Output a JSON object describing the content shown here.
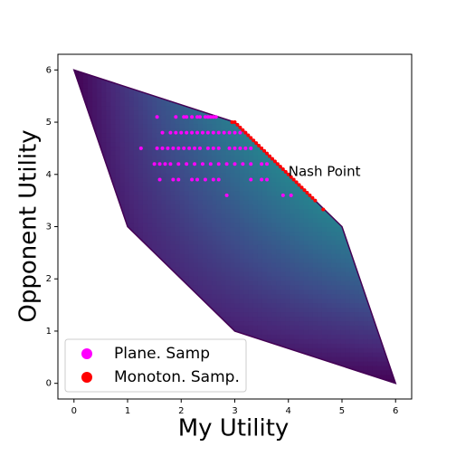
{
  "chart_data": {
    "type": "scatter",
    "xlabel": "My Utility",
    "ylabel": "Opponent Utility",
    "xlim": [
      -0.3,
      6.3
    ],
    "ylim": [
      -0.3,
      6.3
    ],
    "xticks": [
      0,
      1,
      2,
      3,
      4,
      5,
      6
    ],
    "yticks": [
      0,
      1,
      2,
      3,
      4,
      5,
      6
    ],
    "region": {
      "x": [
        0,
        3,
        5,
        6,
        3,
        1
      ],
      "y": [
        6,
        5,
        3,
        0,
        1,
        3
      ]
    },
    "annotation": {
      "text": "Nash Point",
      "x": 4.0,
      "y": 4.05
    },
    "legend": "lower left",
    "series": [
      {
        "name": "Plane. Samp",
        "color": "#ff00ff",
        "x": [
          1.55,
          1.9,
          2.05,
          2.1,
          2.2,
          2.3,
          2.35,
          2.45,
          2.5,
          2.55,
          2.6,
          2.65,
          1.65,
          1.8,
          1.9,
          2.0,
          2.1,
          2.2,
          2.3,
          2.4,
          2.5,
          2.6,
          2.7,
          2.8,
          2.9,
          3.0,
          3.1,
          3.2,
          1.25,
          1.55,
          1.65,
          1.75,
          1.85,
          1.95,
          2.05,
          2.15,
          2.25,
          2.35,
          2.5,
          2.6,
          2.7,
          2.9,
          3.0,
          3.1,
          3.2,
          3.3,
          1.5,
          1.6,
          1.7,
          1.8,
          1.95,
          2.1,
          2.25,
          2.4,
          2.55,
          2.7,
          2.85,
          3.0,
          3.15,
          3.3,
          3.5,
          3.6,
          1.6,
          1.85,
          1.95,
          2.2,
          2.3,
          2.45,
          2.6,
          2.7,
          3.3,
          3.5,
          3.6,
          2.85,
          3.9,
          4.05
        ],
        "y": [
          5.1,
          5.1,
          5.1,
          5.1,
          5.1,
          5.1,
          5.1,
          5.1,
          5.1,
          5.1,
          5.1,
          5.1,
          4.8,
          4.8,
          4.8,
          4.8,
          4.8,
          4.8,
          4.8,
          4.8,
          4.8,
          4.8,
          4.8,
          4.8,
          4.8,
          4.8,
          4.8,
          4.8,
          4.5,
          4.5,
          4.5,
          4.5,
          4.5,
          4.5,
          4.5,
          4.5,
          4.5,
          4.5,
          4.5,
          4.5,
          4.5,
          4.5,
          4.5,
          4.5,
          4.5,
          4.5,
          4.2,
          4.2,
          4.2,
          4.2,
          4.2,
          4.2,
          4.2,
          4.2,
          4.2,
          4.2,
          4.2,
          4.2,
          4.2,
          4.2,
          4.2,
          4.2,
          3.9,
          3.9,
          3.9,
          3.9,
          3.9,
          3.9,
          3.9,
          3.9,
          3.9,
          3.9,
          3.9,
          3.6,
          3.6,
          3.6
        ]
      },
      {
        "name": "Monoton. Samp.",
        "color": "#ff0000",
        "x": [
          2.95,
          3.0,
          3.05,
          3.1,
          3.15,
          3.2,
          3.25,
          3.3,
          3.35,
          3.4,
          3.45,
          3.5,
          3.55,
          3.6,
          3.65,
          3.7,
          3.75,
          3.8,
          3.85,
          3.9,
          3.95,
          4.0,
          4.05,
          4.1,
          4.15,
          4.2,
          4.25,
          4.3,
          4.35,
          4.4,
          4.45,
          4.5,
          4.65
        ],
        "y": [
          5.0,
          5.0,
          4.95,
          4.9,
          4.85,
          4.8,
          4.75,
          4.7,
          4.65,
          4.6,
          4.55,
          4.5,
          4.45,
          4.4,
          4.35,
          4.3,
          4.25,
          4.2,
          4.15,
          4.1,
          4.05,
          4.0,
          3.95,
          3.9,
          3.85,
          3.8,
          3.75,
          3.7,
          3.65,
          3.6,
          3.55,
          3.5,
          3.33
        ]
      }
    ]
  }
}
